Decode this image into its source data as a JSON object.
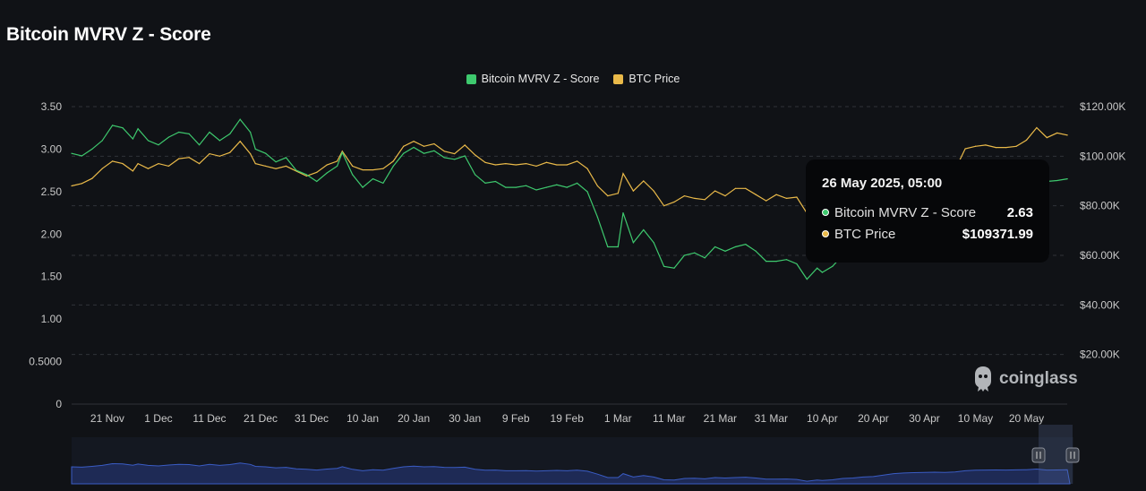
{
  "title": "Bitcoin MVRV Z - Score",
  "legend": [
    {
      "label": "Bitcoin MVRV Z - Score",
      "color": "#3ec96e"
    },
    {
      "label": "BTC Price",
      "color": "#e9b949"
    }
  ],
  "tooltip": {
    "date": "26 May 2025, 05:00",
    "rows": [
      {
        "label": "Bitcoin MVRV Z - Score",
        "value": "2.63",
        "color": "#3ec96e"
      },
      {
        "label": "BTC Price",
        "value": "$109371.99",
        "color": "#e9b949"
      }
    ]
  },
  "watermark": "coinglass",
  "colors": {
    "background": "#101216",
    "zscore": "#3ec96e",
    "price": "#e9b949",
    "navigator": "#3a5cc4"
  },
  "chart_data": {
    "type": "line",
    "grid": true,
    "legend_position": "top-center",
    "left_axis": {
      "ylim": [
        0,
        3.5
      ],
      "ticks": [
        "0",
        "0.5000",
        "1.00",
        "1.50",
        "2.00",
        "2.50",
        "3.00",
        "3.50"
      ]
    },
    "right_axis": {
      "ylim": [
        0,
        120000
      ],
      "ticks": [
        "$20.00K",
        "$40.00K",
        "$60.00K",
        "$80.00K",
        "$100.00K",
        "$120.00K"
      ]
    },
    "x_ticks": [
      "21 Nov",
      "1 Dec",
      "11 Dec",
      "21 Dec",
      "31 Dec",
      "10 Jan",
      "20 Jan",
      "30 Jan",
      "9 Feb",
      "19 Feb",
      "1 Mar",
      "11 Mar",
      "21 Mar",
      "31 Mar",
      "10 Apr",
      "20 Apr",
      "30 Apr",
      "10 May",
      "20 May"
    ],
    "x_range": [
      "2024-11-14",
      "2025-05-28"
    ],
    "series": [
      {
        "name": "Bitcoin MVRV Z - Score",
        "axis": "left",
        "points": [
          [
            "2024-11-14",
            2.95
          ],
          [
            "2024-11-16",
            2.92
          ],
          [
            "2024-11-18",
            3.0
          ],
          [
            "2024-11-20",
            3.1
          ],
          [
            "2024-11-22",
            3.28
          ],
          [
            "2024-11-24",
            3.25
          ],
          [
            "2024-11-26",
            3.12
          ],
          [
            "2024-11-27",
            3.24
          ],
          [
            "2024-11-29",
            3.1
          ],
          [
            "2024-12-01",
            3.05
          ],
          [
            "2024-12-03",
            3.14
          ],
          [
            "2024-12-05",
            3.2
          ],
          [
            "2024-12-07",
            3.18
          ],
          [
            "2024-12-09",
            3.05
          ],
          [
            "2024-12-11",
            3.2
          ],
          [
            "2024-12-13",
            3.1
          ],
          [
            "2024-12-15",
            3.18
          ],
          [
            "2024-12-17",
            3.35
          ],
          [
            "2024-12-19",
            3.2
          ],
          [
            "2024-12-20",
            3.0
          ],
          [
            "2024-12-22",
            2.95
          ],
          [
            "2024-12-24",
            2.85
          ],
          [
            "2024-12-26",
            2.9
          ],
          [
            "2024-12-28",
            2.75
          ],
          [
            "2024-12-30",
            2.7
          ],
          [
            "2025-01-01",
            2.62
          ],
          [
            "2025-01-03",
            2.72
          ],
          [
            "2025-01-05",
            2.8
          ],
          [
            "2025-01-06",
            2.96
          ],
          [
            "2025-01-08",
            2.7
          ],
          [
            "2025-01-10",
            2.55
          ],
          [
            "2025-01-12",
            2.65
          ],
          [
            "2025-01-14",
            2.6
          ],
          [
            "2025-01-16",
            2.8
          ],
          [
            "2025-01-18",
            2.95
          ],
          [
            "2025-01-20",
            3.02
          ],
          [
            "2025-01-22",
            2.95
          ],
          [
            "2025-01-24",
            2.98
          ],
          [
            "2025-01-26",
            2.9
          ],
          [
            "2025-01-28",
            2.88
          ],
          [
            "2025-01-30",
            2.92
          ],
          [
            "2025-02-01",
            2.7
          ],
          [
            "2025-02-03",
            2.6
          ],
          [
            "2025-02-05",
            2.62
          ],
          [
            "2025-02-07",
            2.55
          ],
          [
            "2025-02-09",
            2.55
          ],
          [
            "2025-02-11",
            2.57
          ],
          [
            "2025-02-13",
            2.52
          ],
          [
            "2025-02-15",
            2.55
          ],
          [
            "2025-02-17",
            2.58
          ],
          [
            "2025-02-19",
            2.55
          ],
          [
            "2025-02-21",
            2.6
          ],
          [
            "2025-02-23",
            2.5
          ],
          [
            "2025-02-25",
            2.2
          ],
          [
            "2025-02-27",
            1.85
          ],
          [
            "2025-03-01",
            1.85
          ],
          [
            "2025-03-02",
            2.25
          ],
          [
            "2025-03-04",
            1.9
          ],
          [
            "2025-03-06",
            2.05
          ],
          [
            "2025-03-08",
            1.9
          ],
          [
            "2025-03-10",
            1.62
          ],
          [
            "2025-03-12",
            1.6
          ],
          [
            "2025-03-14",
            1.75
          ],
          [
            "2025-03-16",
            1.78
          ],
          [
            "2025-03-18",
            1.72
          ],
          [
            "2025-03-20",
            1.85
          ],
          [
            "2025-03-22",
            1.8
          ],
          [
            "2025-03-24",
            1.85
          ],
          [
            "2025-03-26",
            1.88
          ],
          [
            "2025-03-28",
            1.8
          ],
          [
            "2025-03-30",
            1.68
          ],
          [
            "2025-04-01",
            1.68
          ],
          [
            "2025-04-03",
            1.7
          ],
          [
            "2025-04-05",
            1.65
          ],
          [
            "2025-04-07",
            1.47
          ],
          [
            "2025-04-09",
            1.6
          ],
          [
            "2025-04-10",
            1.55
          ],
          [
            "2025-04-12",
            1.62
          ],
          [
            "2025-04-14",
            1.75
          ],
          [
            "2025-04-16",
            1.8
          ],
          [
            "2025-04-18",
            1.9
          ],
          [
            "2025-04-20",
            1.95
          ],
          [
            "2025-04-22",
            2.1
          ],
          [
            "2025-04-24",
            2.25
          ],
          [
            "2025-04-26",
            2.32
          ],
          [
            "2025-04-28",
            2.35
          ],
          [
            "2025-04-30",
            2.38
          ],
          [
            "2025-05-02",
            2.4
          ],
          [
            "2025-05-04",
            2.38
          ],
          [
            "2025-05-06",
            2.42
          ],
          [
            "2025-05-08",
            2.55
          ],
          [
            "2025-05-10",
            2.6
          ],
          [
            "2025-05-12",
            2.62
          ],
          [
            "2025-05-14",
            2.63
          ],
          [
            "2025-05-16",
            2.62
          ],
          [
            "2025-05-18",
            2.64
          ],
          [
            "2025-05-20",
            2.66
          ],
          [
            "2025-05-22",
            2.72
          ],
          [
            "2025-05-24",
            2.62
          ],
          [
            "2025-05-26",
            2.63
          ],
          [
            "2025-05-28",
            2.65
          ]
        ]
      },
      {
        "name": "BTC Price",
        "axis": "right",
        "points": [
          [
            "2024-11-14",
            88000
          ],
          [
            "2024-11-16",
            89000
          ],
          [
            "2024-11-18",
            91000
          ],
          [
            "2024-11-20",
            95000
          ],
          [
            "2024-11-22",
            98000
          ],
          [
            "2024-11-24",
            97000
          ],
          [
            "2024-11-26",
            94000
          ],
          [
            "2024-11-27",
            97000
          ],
          [
            "2024-11-29",
            95000
          ],
          [
            "2024-12-01",
            97000
          ],
          [
            "2024-12-03",
            96000
          ],
          [
            "2024-12-05",
            99000
          ],
          [
            "2024-12-07",
            99500
          ],
          [
            "2024-12-09",
            97000
          ],
          [
            "2024-12-11",
            101000
          ],
          [
            "2024-12-13",
            100000
          ],
          [
            "2024-12-15",
            101500
          ],
          [
            "2024-12-17",
            106000
          ],
          [
            "2024-12-19",
            101000
          ],
          [
            "2024-12-20",
            97000
          ],
          [
            "2024-12-22",
            96000
          ],
          [
            "2024-12-24",
            95000
          ],
          [
            "2024-12-26",
            96000
          ],
          [
            "2024-12-28",
            94000
          ],
          [
            "2024-12-30",
            92000
          ],
          [
            "2025-01-01",
            93500
          ],
          [
            "2025-01-03",
            96500
          ],
          [
            "2025-01-05",
            98000
          ],
          [
            "2025-01-06",
            102000
          ],
          [
            "2025-01-08",
            96000
          ],
          [
            "2025-01-10",
            94500
          ],
          [
            "2025-01-12",
            94500
          ],
          [
            "2025-01-14",
            95000
          ],
          [
            "2025-01-16",
            98000
          ],
          [
            "2025-01-18",
            104000
          ],
          [
            "2025-01-20",
            106000
          ],
          [
            "2025-01-22",
            104000
          ],
          [
            "2025-01-24",
            105000
          ],
          [
            "2025-01-26",
            102000
          ],
          [
            "2025-01-28",
            101000
          ],
          [
            "2025-01-30",
            104500
          ],
          [
            "2025-02-01",
            100500
          ],
          [
            "2025-02-03",
            97500
          ],
          [
            "2025-02-05",
            96500
          ],
          [
            "2025-02-07",
            97000
          ],
          [
            "2025-02-09",
            96500
          ],
          [
            "2025-02-11",
            97000
          ],
          [
            "2025-02-13",
            96000
          ],
          [
            "2025-02-15",
            97500
          ],
          [
            "2025-02-17",
            96500
          ],
          [
            "2025-02-19",
            96500
          ],
          [
            "2025-02-21",
            98000
          ],
          [
            "2025-02-23",
            95000
          ],
          [
            "2025-02-25",
            88000
          ],
          [
            "2025-02-27",
            84000
          ],
          [
            "2025-03-01",
            85000
          ],
          [
            "2025-03-02",
            93000
          ],
          [
            "2025-03-04",
            86000
          ],
          [
            "2025-03-06",
            90000
          ],
          [
            "2025-03-08",
            86000
          ],
          [
            "2025-03-10",
            80000
          ],
          [
            "2025-03-12",
            81500
          ],
          [
            "2025-03-14",
            84000
          ],
          [
            "2025-03-16",
            83000
          ],
          [
            "2025-03-18",
            82500
          ],
          [
            "2025-03-20",
            86000
          ],
          [
            "2025-03-22",
            84000
          ],
          [
            "2025-03-24",
            87000
          ],
          [
            "2025-03-26",
            87000
          ],
          [
            "2025-03-28",
            84500
          ],
          [
            "2025-03-30",
            82000
          ],
          [
            "2025-04-01",
            84500
          ],
          [
            "2025-04-03",
            83000
          ],
          [
            "2025-04-05",
            83500
          ],
          [
            "2025-04-07",
            77000
          ],
          [
            "2025-04-09",
            82000
          ],
          [
            "2025-04-10",
            79500
          ],
          [
            "2025-04-12",
            84000
          ],
          [
            "2025-04-14",
            85000
          ],
          [
            "2025-04-16",
            84500
          ],
          [
            "2025-04-18",
            85000
          ],
          [
            "2025-04-20",
            86000
          ],
          [
            "2025-04-22",
            92000
          ],
          [
            "2025-04-24",
            93500
          ],
          [
            "2025-04-26",
            94500
          ],
          [
            "2025-04-28",
            95000
          ],
          [
            "2025-04-30",
            94500
          ],
          [
            "2025-05-02",
            97000
          ],
          [
            "2025-05-04",
            95500
          ],
          [
            "2025-05-06",
            94500
          ],
          [
            "2025-05-08",
            103000
          ],
          [
            "2025-05-10",
            104000
          ],
          [
            "2025-05-12",
            104500
          ],
          [
            "2025-05-14",
            103500
          ],
          [
            "2025-05-16",
            103500
          ],
          [
            "2025-05-18",
            104000
          ],
          [
            "2025-05-20",
            106500
          ],
          [
            "2025-05-22",
            111500
          ],
          [
            "2025-05-24",
            107500
          ],
          [
            "2025-05-26",
            109372
          ],
          [
            "2025-05-28",
            108500
          ]
        ]
      }
    ]
  }
}
